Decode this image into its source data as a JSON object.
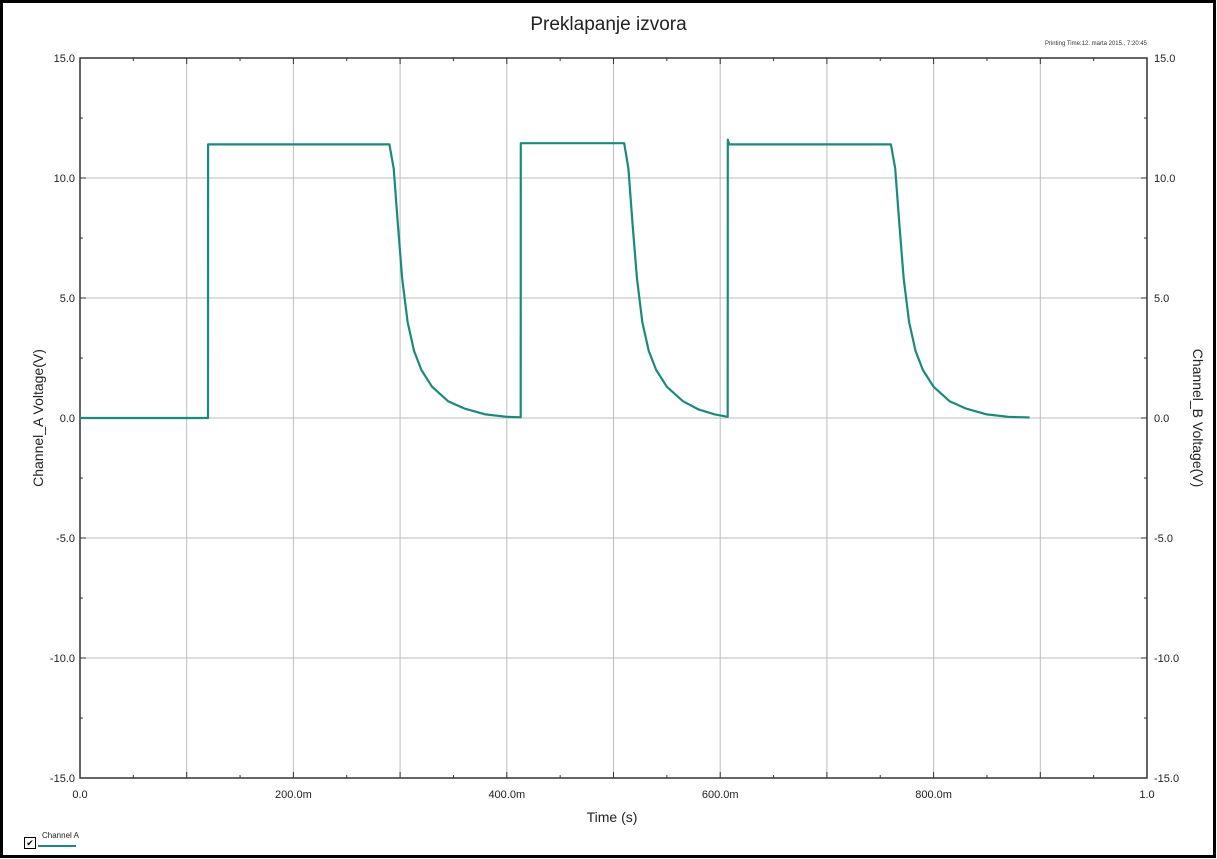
{
  "chart_data": {
    "type": "line",
    "title": "Preklapanje izvora",
    "printing_time": "Printing Time:12. marta 2015., 7:20:45",
    "xlabel": "Time (s)",
    "ylabel_left": "Channel_A Voltage(V)",
    "ylabel_right": "Channel_B Voltage(V)",
    "xlim": [
      0,
      1.0
    ],
    "ylim": [
      -15,
      15
    ],
    "x_tick_values": [
      0,
      0.2,
      0.4,
      0.6,
      0.8,
      1.0
    ],
    "x_tick_labels": [
      "0.0",
      "200.0m",
      "400.0m",
      "600.0m",
      "800.0m",
      "1.0"
    ],
    "y_tick_values": [
      15,
      10,
      5,
      0,
      -5,
      -10,
      -15
    ],
    "y_tick_labels_left": [
      "15.0",
      "10.0",
      "5.0",
      "0.0",
      "-5.0",
      "-10.0",
      "-15.0"
    ],
    "y_tick_labels_right": [
      "15.0",
      "10.0",
      "5.0",
      "0.0",
      "-5.0",
      "-10.0",
      "-15.0"
    ],
    "grid": true,
    "legend_position": "bottom-left",
    "color": "#1a8a7e",
    "series": [
      {
        "name": "Channel A",
        "checked": true,
        "x": [
          0,
          0.12,
          0.1201,
          0.29,
          0.294,
          0.298,
          0.302,
          0.307,
          0.313,
          0.32,
          0.33,
          0.345,
          0.36,
          0.38,
          0.4,
          0.413,
          0.4131,
          0.51,
          0.514,
          0.518,
          0.522,
          0.527,
          0.533,
          0.54,
          0.55,
          0.565,
          0.58,
          0.595,
          0.607,
          0.6071,
          0.6085,
          0.76,
          0.764,
          0.768,
          0.772,
          0.777,
          0.783,
          0.79,
          0.8,
          0.815,
          0.83,
          0.85,
          0.87,
          0.89
        ],
        "y": [
          0,
          0,
          11.4,
          11.4,
          10.4,
          8.0,
          5.8,
          4.0,
          2.8,
          2.0,
          1.3,
          0.7,
          0.4,
          0.15,
          0.05,
          0.03,
          11.45,
          11.45,
          10.4,
          8.0,
          5.8,
          4.0,
          2.8,
          2.0,
          1.3,
          0.7,
          0.35,
          0.15,
          0.05,
          11.6,
          11.4,
          11.4,
          10.4,
          8.0,
          5.8,
          4.0,
          2.8,
          2.0,
          1.3,
          0.7,
          0.4,
          0.15,
          0.05,
          0.02
        ]
      }
    ]
  }
}
